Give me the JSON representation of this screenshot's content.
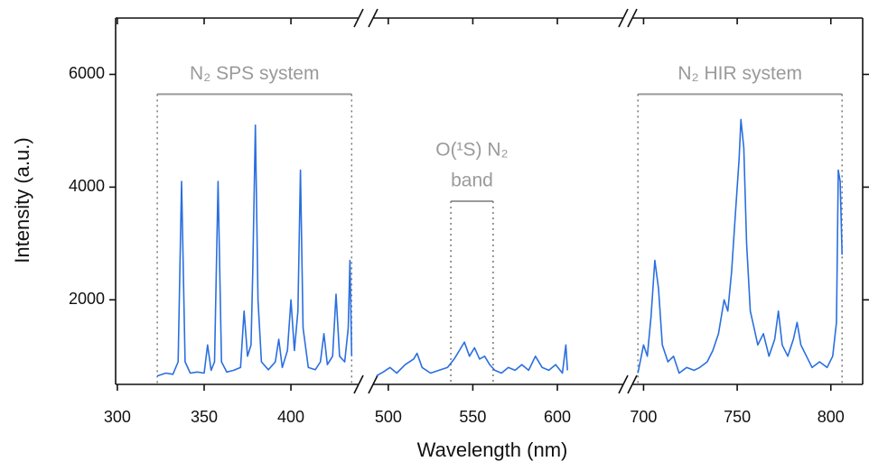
{
  "chart_data": {
    "type": "line",
    "x_label": "Wavelength (nm)",
    "y_label": "Intensity (a.u.)",
    "color": "#2a6fe0",
    "ylim": [
      500,
      7000
    ],
    "yticks": [
      2000,
      4000,
      6000
    ],
    "segments": [
      {
        "xlim": [
          299,
          439
        ],
        "xticks": [
          300,
          350,
          400
        ],
        "x": [
          323,
          328,
          332,
          335,
          337,
          339,
          342,
          346,
          350,
          352,
          354,
          356,
          358,
          360,
          363,
          367,
          371,
          373,
          375,
          377,
          378,
          379.5,
          381,
          383,
          387,
          391,
          393,
          395,
          398,
          400,
          402,
          404,
          405.5,
          407,
          410,
          414,
          417,
          419,
          421,
          424,
          426,
          428,
          431,
          433,
          434,
          435
        ],
        "values": [
          650,
          700,
          680,
          900,
          4100,
          900,
          700,
          720,
          700,
          1200,
          750,
          900,
          4100,
          900,
          720,
          750,
          800,
          1800,
          1000,
          1200,
          2500,
          5100,
          2000,
          900,
          760,
          900,
          1300,
          800,
          1100,
          2000,
          1100,
          1800,
          4300,
          1500,
          800,
          760,
          900,
          1400,
          850,
          1000,
          2100,
          1000,
          900,
          1500,
          2700,
          1000
        ]
      },
      {
        "xlim": [
          491,
          639
        ],
        "xticks": [
          500,
          550,
          600
        ],
        "x": [
          493,
          497,
          501,
          505,
          510,
          515,
          517,
          520,
          525,
          530,
          535,
          539,
          542,
          545,
          548,
          551,
          554,
          557,
          560,
          563,
          567,
          571,
          575,
          579,
          583,
          587,
          591,
          595,
          599,
          603,
          605,
          606
        ],
        "values": [
          650,
          720,
          800,
          700,
          850,
          950,
          1050,
          800,
          700,
          750,
          800,
          950,
          1100,
          1250,
          1000,
          1150,
          950,
          1000,
          850,
          750,
          700,
          800,
          750,
          850,
          750,
          1000,
          800,
          750,
          850,
          700,
          1200,
          750
        ]
      },
      {
        "xlim": [
          694,
          817
        ],
        "xticks": [
          700,
          750,
          800
        ],
        "x": [
          697,
          700,
          702,
          704,
          706,
          708,
          710,
          713,
          716,
          719,
          723,
          727,
          730,
          734,
          737,
          740,
          743,
          745,
          747,
          749,
          751,
          752,
          753.5,
          755,
          757,
          759,
          761,
          764,
          767,
          770,
          772,
          774,
          777,
          780,
          782,
          784,
          787,
          790,
          794,
          798,
          801,
          803,
          804,
          805,
          806
        ],
        "values": [
          700,
          1200,
          1000,
          1700,
          2700,
          2200,
          1200,
          900,
          1000,
          700,
          800,
          750,
          800,
          900,
          1100,
          1400,
          2000,
          1800,
          2500,
          3500,
          4500,
          5200,
          4700,
          3000,
          1800,
          1500,
          1200,
          1400,
          1000,
          1300,
          1800,
          1200,
          1000,
          1300,
          1600,
          1200,
          1000,
          800,
          900,
          800,
          1000,
          1600,
          4300,
          4100,
          2800
        ]
      }
    ],
    "annotations": [
      {
        "text": [
          "N₂ SPS system"
        ],
        "x0": 323,
        "x1": 435,
        "y": 5650
      },
      {
        "text": [
          "O(¹S) N₂",
          "band"
        ],
        "x0": 537,
        "x1": 562,
        "y": 3750
      },
      {
        "text": [
          "N₂ HIR system"
        ],
        "x0": 697,
        "x1": 806,
        "y": 5650
      }
    ]
  }
}
